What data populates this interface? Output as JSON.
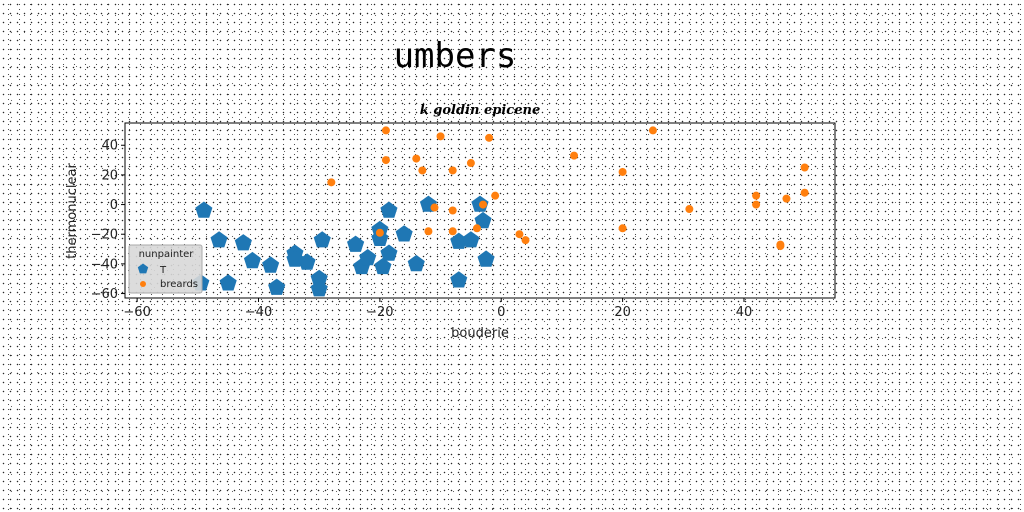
{
  "figure": {
    "suptitle": "umbers"
  },
  "chart_data": {
    "type": "scatter",
    "title": "k goldin epicene",
    "xlabel": "bouderie",
    "ylabel": "thermonuclear",
    "xlim": [
      -62,
      55
    ],
    "ylim": [
      -63,
      55
    ],
    "xticks": [
      -60,
      -40,
      -20,
      0,
      20,
      40
    ],
    "yticks": [
      -60,
      -40,
      -20,
      0,
      20,
      40
    ],
    "grid": false,
    "legend": {
      "title": "nunpainter",
      "placement": "lower-left"
    },
    "series": [
      {
        "name": "T",
        "marker": "pentagon",
        "color": "#1f77b4",
        "points": [
          [
            -49,
            -4
          ],
          [
            -46.5,
            -24
          ],
          [
            -45,
            -53
          ],
          [
            -49.5,
            -53
          ],
          [
            -42.5,
            -26
          ],
          [
            -41,
            -38
          ],
          [
            -38,
            -41
          ],
          [
            -37,
            -56
          ],
          [
            -34,
            -33
          ],
          [
            -34,
            -37
          ],
          [
            -32,
            -39
          ],
          [
            -30,
            -50
          ],
          [
            -30,
            -57
          ],
          [
            -29.5,
            -24
          ],
          [
            -24,
            -27
          ],
          [
            -23,
            -42
          ],
          [
            -22,
            -36
          ],
          [
            -20,
            -23
          ],
          [
            -20,
            -17
          ],
          [
            -19.5,
            -42
          ],
          [
            -18.5,
            -33
          ],
          [
            -18.5,
            -4
          ],
          [
            -16,
            -20
          ],
          [
            -14,
            -40
          ],
          [
            -12,
            0
          ],
          [
            -7,
            -25
          ],
          [
            -7,
            -51
          ],
          [
            -5,
            -24
          ],
          [
            -3.5,
            0
          ],
          [
            -3,
            -11
          ],
          [
            -2.5,
            -37
          ]
        ]
      },
      {
        "name": "breards",
        "marker": "circle",
        "color": "#ff7f0e",
        "points": [
          [
            -19,
            50
          ],
          [
            -19,
            30
          ],
          [
            -28,
            15
          ],
          [
            -20,
            -19
          ],
          [
            -14,
            31
          ],
          [
            -13,
            23
          ],
          [
            -12,
            -18
          ],
          [
            -11,
            -2
          ],
          [
            -10,
            46
          ],
          [
            -8,
            23
          ],
          [
            -8,
            -4
          ],
          [
            -8,
            -18
          ],
          [
            -5,
            28
          ],
          [
            -4,
            -16
          ],
          [
            -3,
            0
          ],
          [
            -2,
            45
          ],
          [
            -1,
            6
          ],
          [
            3,
            -20
          ],
          [
            4,
            -24
          ],
          [
            12,
            33
          ],
          [
            20,
            22
          ],
          [
            20,
            -16
          ],
          [
            25,
            50
          ],
          [
            31,
            -3
          ],
          [
            42,
            6
          ],
          [
            42,
            0
          ],
          [
            46,
            -27
          ],
          [
            46,
            -28
          ],
          [
            47,
            4
          ],
          [
            50,
            25
          ],
          [
            50,
            8
          ]
        ]
      }
    ]
  }
}
